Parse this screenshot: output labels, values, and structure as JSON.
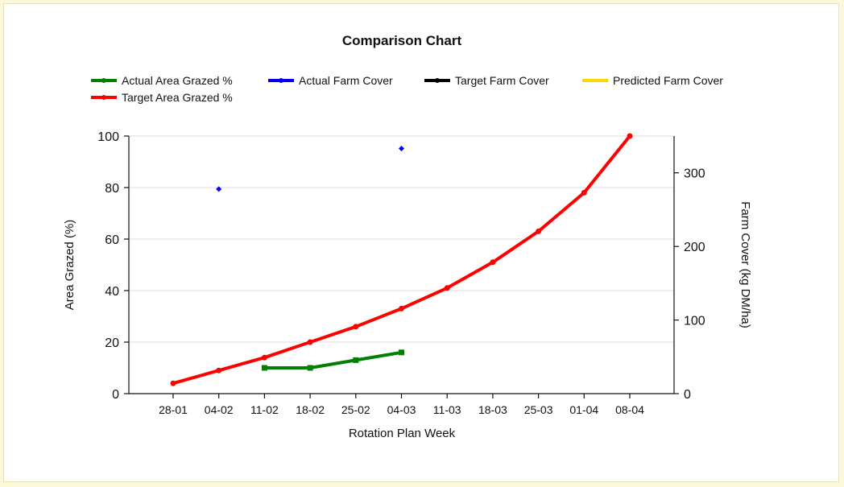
{
  "chart_data": {
    "type": "line",
    "title": "Comparison Chart",
    "xlabel": "Rotation Plan Week",
    "ylabel": "Area Grazed (%)",
    "y2label": "Farm Cover (kg DM/ha)",
    "categories": [
      "28-01",
      "04-02",
      "11-02",
      "18-02",
      "25-02",
      "04-03",
      "11-03",
      "18-03",
      "25-03",
      "01-04",
      "08-04"
    ],
    "ylim": [
      0,
      100
    ],
    "yticks": [
      0,
      20,
      40,
      60,
      80,
      100
    ],
    "y2lim": [
      0,
      350
    ],
    "y2ticks": [
      0,
      100,
      200,
      300
    ],
    "grid": true,
    "legend_position": "top-left",
    "series": [
      {
        "name": "Actual Area Grazed %",
        "axis": "left",
        "color": "#008000",
        "values": [
          null,
          null,
          10,
          10,
          13,
          16,
          null,
          null,
          null,
          null,
          null
        ]
      },
      {
        "name": "Actual Farm Cover",
        "axis": "right",
        "color": "#0000ff",
        "values": [
          null,
          278,
          null,
          null,
          null,
          333,
          null,
          null,
          null,
          null,
          null
        ]
      },
      {
        "name": "Target Farm Cover",
        "axis": "right",
        "color": "#000000",
        "values": [
          null,
          null,
          null,
          null,
          null,
          null,
          null,
          null,
          null,
          null,
          null
        ]
      },
      {
        "name": "Predicted Farm Cover",
        "axis": "right",
        "color": "#ffd700",
        "values": [
          null,
          null,
          null,
          null,
          null,
          null,
          null,
          null,
          null,
          null,
          null
        ]
      },
      {
        "name": "Target Area Grazed %",
        "axis": "left",
        "color": "#ff0000",
        "values": [
          4,
          9,
          14,
          20,
          26,
          33,
          41,
          51,
          63,
          78,
          100
        ]
      }
    ]
  }
}
